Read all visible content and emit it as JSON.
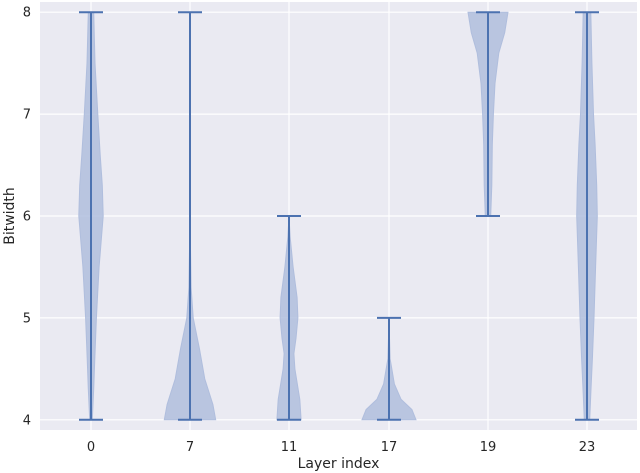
{
  "chart_data": {
    "type": "violin",
    "title": "",
    "xlabel": "Layer index",
    "ylabel": "Bitwidth",
    "ylim": [
      3.9,
      8.1
    ],
    "yticks": [
      4,
      5,
      6,
      7,
      8
    ],
    "grid": true,
    "colors": {
      "background": "#eaeaf2",
      "grid": "#ffffff",
      "violin_fill": "#b0bedd",
      "violin_line": "#4c72b0"
    },
    "categories": [
      "0",
      "7",
      "11",
      "17",
      "19",
      "23"
    ],
    "violins": [
      {
        "label": "0",
        "min": 4,
        "max": 8,
        "density": [
          [
            4.0,
            0.05
          ],
          [
            4.3,
            0.1
          ],
          [
            4.6,
            0.14
          ],
          [
            5.0,
            0.2
          ],
          [
            5.5,
            0.3
          ],
          [
            6.0,
            0.45
          ],
          [
            6.3,
            0.42
          ],
          [
            6.6,
            0.34
          ],
          [
            7.0,
            0.25
          ],
          [
            7.5,
            0.15
          ],
          [
            8.0,
            0.1
          ]
        ]
      },
      {
        "label": "7",
        "min": 4,
        "max": 8,
        "density": [
          [
            4.0,
            0.95
          ],
          [
            4.15,
            0.85
          ],
          [
            4.4,
            0.55
          ],
          [
            4.7,
            0.35
          ],
          [
            5.0,
            0.12
          ],
          [
            5.3,
            0.04
          ],
          [
            5.8,
            0.01
          ],
          [
            7.0,
            0.0
          ],
          [
            8.0,
            0.0
          ]
        ]
      },
      {
        "label": "11",
        "min": 4,
        "max": 6,
        "density": [
          [
            4.0,
            0.45
          ],
          [
            4.2,
            0.4
          ],
          [
            4.5,
            0.22
          ],
          [
            4.65,
            0.18
          ],
          [
            4.8,
            0.26
          ],
          [
            5.0,
            0.33
          ],
          [
            5.2,
            0.3
          ],
          [
            5.5,
            0.15
          ],
          [
            5.8,
            0.04
          ],
          [
            6.0,
            0.0
          ]
        ]
      },
      {
        "label": "17",
        "min": 4,
        "max": 5,
        "density": [
          [
            4.0,
            1.0
          ],
          [
            4.1,
            0.85
          ],
          [
            4.2,
            0.45
          ],
          [
            4.35,
            0.2
          ],
          [
            4.6,
            0.04
          ],
          [
            4.8,
            0.02
          ],
          [
            5.0,
            0.0
          ]
        ]
      },
      {
        "label": "19",
        "min": 6,
        "max": 8,
        "density": [
          [
            6.0,
            0.1
          ],
          [
            6.3,
            0.14
          ],
          [
            6.7,
            0.16
          ],
          [
            7.0,
            0.2
          ],
          [
            7.3,
            0.26
          ],
          [
            7.6,
            0.4
          ],
          [
            7.8,
            0.62
          ],
          [
            8.0,
            0.74
          ]
        ]
      },
      {
        "label": "23",
        "min": 4,
        "max": 8,
        "density": [
          [
            4.0,
            0.1
          ],
          [
            4.3,
            0.15
          ],
          [
            4.6,
            0.2
          ],
          [
            5.0,
            0.26
          ],
          [
            5.5,
            0.32
          ],
          [
            6.0,
            0.38
          ],
          [
            6.3,
            0.36
          ],
          [
            6.7,
            0.3
          ],
          [
            7.0,
            0.24
          ],
          [
            7.5,
            0.18
          ],
          [
            8.0,
            0.14
          ]
        ]
      }
    ]
  }
}
